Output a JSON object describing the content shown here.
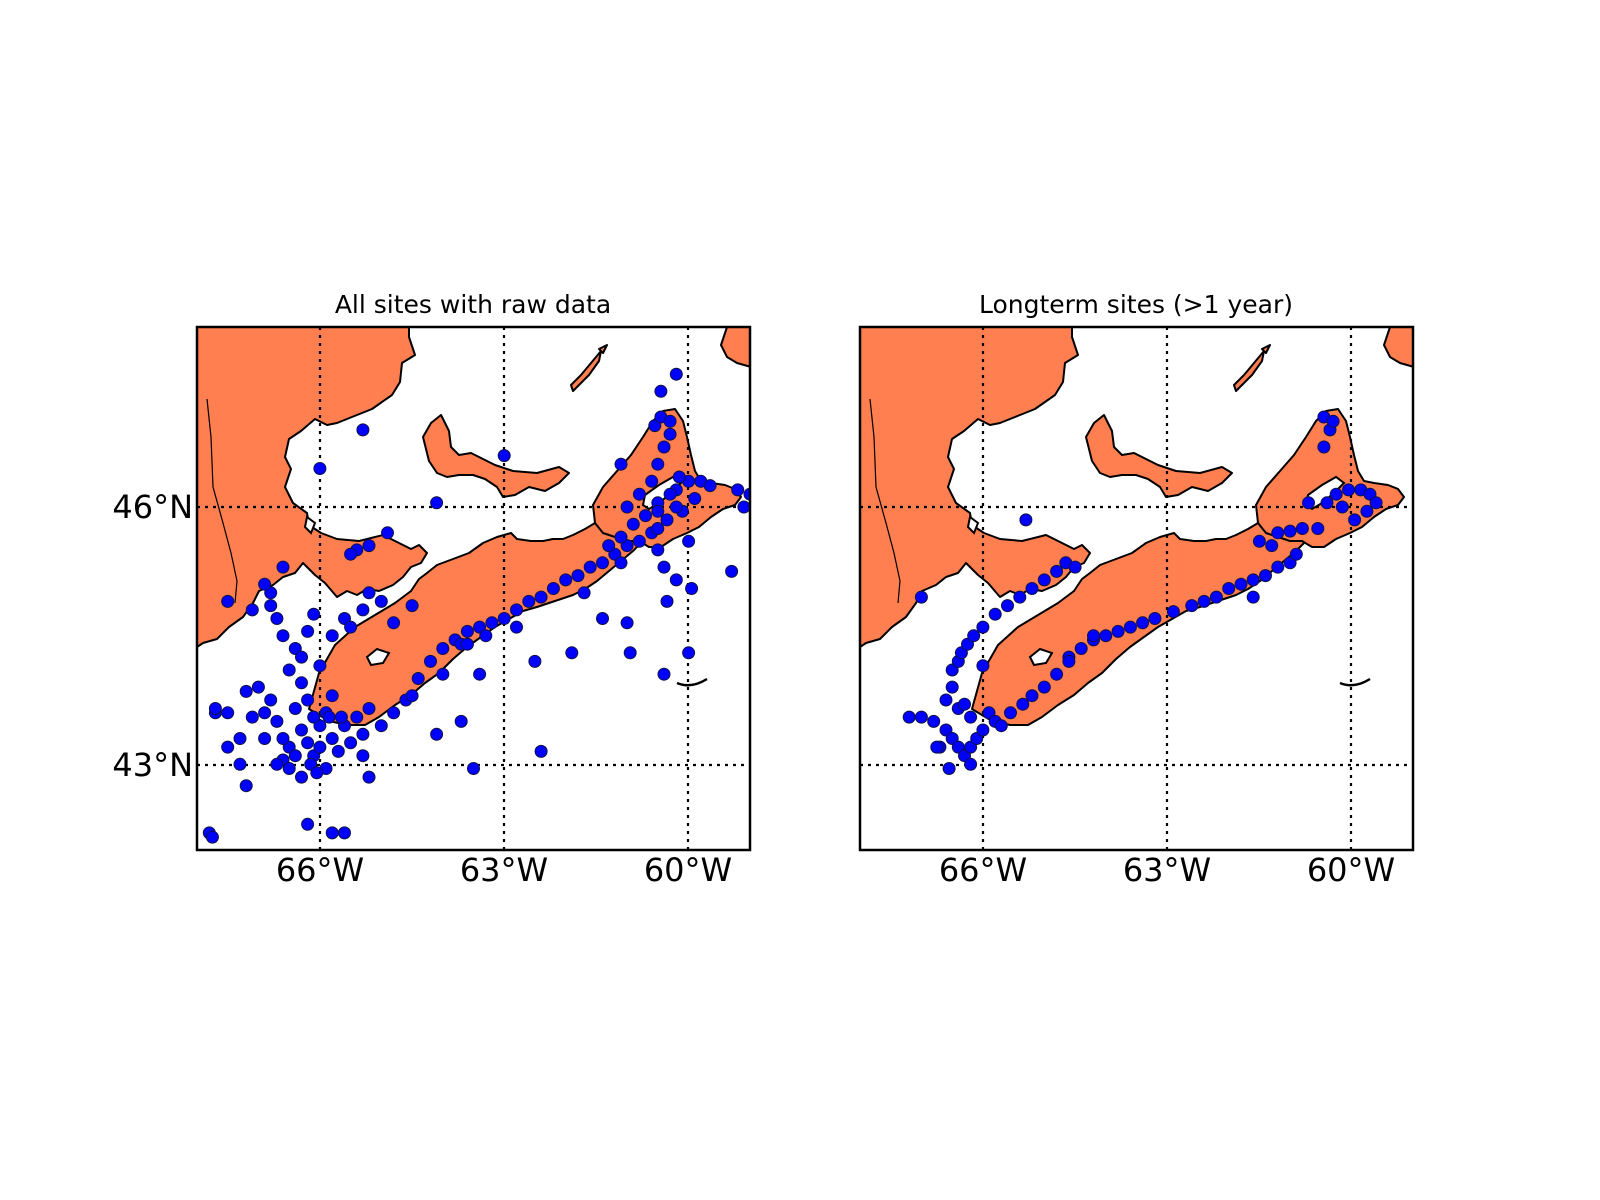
{
  "figure": {
    "panels": [
      {
        "id": "left",
        "title": "All sites with raw data"
      },
      {
        "id": "right",
        "title": "Longterm sites (>1 year)"
      }
    ],
    "y_tick_labels": [
      "46°N",
      "43°N"
    ],
    "x_tick_labels": [
      "66°W",
      "63°W",
      "60°W"
    ],
    "land_color": "#ff7f50",
    "water_color": "#ffffff",
    "marker_color": "#0000ff",
    "grid_style": "dotted"
  },
  "chart_data": [
    {
      "type": "scatter",
      "title": "All sites with raw data",
      "projection": "map (lon/lat)",
      "xlim": [
        -68.0,
        -59.0
      ],
      "ylim": [
        42.0,
        48.1
      ],
      "meridians": [
        -66,
        -63,
        -60
      ],
      "parallels": [
        43,
        46
      ],
      "xlabel": "",
      "ylabel": "",
      "grid": true,
      "series": [
        {
          "points": [
            [
              -67.1,
              43.55
            ],
            [
              -66.9,
              43.3
            ],
            [
              -66.7,
              43.5
            ],
            [
              -66.5,
              43.2
            ],
            [
              -66.3,
              43.4
            ],
            [
              -66.1,
              43.1
            ],
            [
              -65.9,
              43.6
            ],
            [
              -66.6,
              43.05
            ],
            [
              -66.8,
              43.75
            ],
            [
              -66.4,
              43.65
            ],
            [
              -66.2,
              43.75
            ],
            [
              -66.0,
              43.45
            ],
            [
              -65.8,
              43.3
            ],
            [
              -65.6,
              43.45
            ],
            [
              -65.4,
              43.55
            ],
            [
              -65.2,
              43.65
            ],
            [
              -66.7,
              43.0
            ],
            [
              -67.3,
              43.3
            ],
            [
              -67.5,
              43.2
            ],
            [
              -67.7,
              43.6
            ],
            [
              -67.2,
              42.75
            ],
            [
              -66.3,
              42.85
            ],
            [
              -66.5,
              42.95
            ],
            [
              -66.0,
              43.2
            ],
            [
              -65.9,
              42.95
            ],
            [
              -65.7,
              43.15
            ],
            [
              -67.2,
              43.85
            ],
            [
              -67.0,
              43.9
            ],
            [
              -66.9,
              43.6
            ],
            [
              -66.6,
              43.3
            ],
            [
              -66.4,
              43.1
            ],
            [
              -66.2,
              43.25
            ],
            [
              -66.1,
              43.55
            ],
            [
              -66.3,
              43.95
            ],
            [
              -66.5,
              44.1
            ],
            [
              -66.4,
              44.35
            ],
            [
              -66.6,
              44.5
            ],
            [
              -66.2,
              44.55
            ],
            [
              -66.1,
              44.75
            ],
            [
              -66.3,
              44.25
            ],
            [
              -66.0,
              44.15
            ],
            [
              -66.15,
              43.0
            ],
            [
              -66.05,
              42.9
            ],
            [
              -65.85,
              43.55
            ],
            [
              -65.8,
              43.8
            ],
            [
              -65.65,
              43.55
            ],
            [
              -65.5,
              43.25
            ],
            [
              -65.3,
              43.35
            ],
            [
              -65.0,
              43.45
            ],
            [
              -64.8,
              43.6
            ],
            [
              -64.6,
              43.75
            ],
            [
              -64.4,
              44.0
            ],
            [
              -64.2,
              44.2
            ],
            [
              -64.0,
              44.35
            ],
            [
              -63.8,
              44.45
            ],
            [
              -63.6,
              44.55
            ],
            [
              -63.4,
              44.6
            ],
            [
              -63.2,
              44.65
            ],
            [
              -63.0,
              44.7
            ],
            [
              -62.8,
              44.8
            ],
            [
              -62.6,
              44.9
            ],
            [
              -62.4,
              44.95
            ],
            [
              -62.2,
              45.05
            ],
            [
              -62.0,
              45.15
            ],
            [
              -61.8,
              45.2
            ],
            [
              -61.6,
              45.3
            ],
            [
              -61.4,
              45.35
            ],
            [
              -61.2,
              45.45
            ],
            [
              -61.0,
              45.55
            ],
            [
              -60.8,
              45.6
            ],
            [
              -60.6,
              45.7
            ],
            [
              -61.1,
              45.65
            ],
            [
              -61.3,
              45.55
            ],
            [
              -60.9,
              45.8
            ],
            [
              -61.0,
              46.0
            ],
            [
              -60.8,
              46.15
            ],
            [
              -60.6,
              46.3
            ],
            [
              -60.5,
              46.5
            ],
            [
              -60.4,
              46.7
            ],
            [
              -60.3,
              46.85
            ],
            [
              -60.55,
              46.95
            ],
            [
              -60.45,
              47.05
            ],
            [
              -60.3,
              47.0
            ],
            [
              -60.2,
              46.2
            ],
            [
              -60.0,
              46.3
            ],
            [
              -59.8,
              46.3
            ],
            [
              -59.65,
              46.25
            ],
            [
              -59.9,
              46.1
            ],
            [
              -60.1,
              45.95
            ],
            [
              -60.35,
              45.85
            ],
            [
              -60.5,
              45.75
            ],
            [
              -60.7,
              45.9
            ],
            [
              -60.5,
              46.05
            ],
            [
              -60.3,
              46.15
            ],
            [
              -60.2,
              46.0
            ],
            [
              -60.0,
              45.6
            ],
            [
              -59.2,
              46.2
            ],
            [
              -59.0,
              46.15
            ],
            [
              -59.1,
              46.0
            ],
            [
              -59.3,
              45.25
            ],
            [
              -59.95,
              45.05
            ],
            [
              -60.4,
              45.3
            ],
            [
              -60.2,
              45.15
            ],
            [
              -60.35,
              44.9
            ],
            [
              -60.5,
              45.5
            ],
            [
              -61.7,
              45.0
            ],
            [
              -61.4,
              44.7
            ],
            [
              -61.0,
              44.65
            ],
            [
              -60.95,
              44.3
            ],
            [
              -61.9,
              44.3
            ],
            [
              -62.5,
              44.2
            ],
            [
              -63.3,
              44.5
            ],
            [
              -63.7,
              44.4
            ],
            [
              -63.4,
              44.05
            ],
            [
              -63.6,
              44.4
            ],
            [
              -62.8,
              44.6
            ],
            [
              -64.0,
              44.05
            ],
            [
              -64.5,
              43.8
            ],
            [
              -63.5,
              42.95
            ],
            [
              -62.4,
              43.15
            ],
            [
              -64.1,
              43.35
            ],
            [
              -60.4,
              44.05
            ],
            [
              -60.0,
              44.3
            ],
            [
              -64.5,
              44.85
            ],
            [
              -64.8,
              44.65
            ],
            [
              -65.0,
              44.9
            ],
            [
              -65.3,
              44.8
            ],
            [
              -65.6,
              44.7
            ],
            [
              -65.8,
              44.5
            ],
            [
              -65.2,
              45.0
            ],
            [
              -65.5,
              44.6
            ],
            [
              -66.6,
              45.3
            ],
            [
              -66.8,
              45.0
            ],
            [
              -67.1,
              44.8
            ],
            [
              -66.7,
              44.7
            ],
            [
              -67.5,
              44.9
            ],
            [
              -66.9,
              45.1
            ],
            [
              -66.8,
              44.85
            ],
            [
              -67.3,
              43.0
            ],
            [
              -67.5,
              43.6
            ],
            [
              -67.7,
              43.65
            ],
            [
              -67.8,
              42.2
            ],
            [
              -67.75,
              42.15
            ],
            [
              -66.2,
              42.3
            ],
            [
              -65.8,
              42.2
            ],
            [
              -65.6,
              42.2
            ],
            [
              -65.3,
              43.1
            ],
            [
              -65.2,
              42.85
            ],
            [
              -63.7,
              43.5
            ],
            [
              -66.0,
              46.45
            ],
            [
              -65.4,
              45.5
            ],
            [
              -65.2,
              45.55
            ],
            [
              -64.9,
              45.7
            ],
            [
              -65.5,
              45.45
            ],
            [
              -65.3,
              46.9
            ],
            [
              -63.0,
              46.6
            ],
            [
              -61.1,
              46.5
            ],
            [
              -64.1,
              46.05
            ],
            [
              -61.1,
              45.35
            ],
            [
              -60.45,
              47.35
            ],
            [
              -60.2,
              47.55
            ],
            [
              -60.5,
              45.95
            ],
            [
              -60.15,
              46.35
            ]
          ]
        }
      ]
    },
    {
      "type": "scatter",
      "title": "Longterm sites (>1 year)",
      "projection": "map (lon/lat)",
      "xlim": [
        -68.0,
        -59.0
      ],
      "ylim": [
        42.0,
        48.1
      ],
      "meridians": [
        -66,
        -63,
        -60
      ],
      "parallels": [
        43,
        46
      ],
      "xlabel": "",
      "ylabel": "",
      "grid": true,
      "series": [
        {
          "points": [
            [
              -67.0,
              43.55
            ],
            [
              -66.8,
              43.5
            ],
            [
              -66.6,
              43.4
            ],
            [
              -66.5,
              43.3
            ],
            [
              -66.4,
              43.2
            ],
            [
              -66.3,
              43.1
            ],
            [
              -66.2,
              43.2
            ],
            [
              -66.1,
              43.3
            ],
            [
              -66.0,
              43.4
            ],
            [
              -66.2,
              43.55
            ],
            [
              -66.4,
              43.65
            ],
            [
              -66.6,
              43.75
            ],
            [
              -66.3,
              43.7
            ],
            [
              -66.5,
              43.9
            ],
            [
              -66.5,
              44.1
            ],
            [
              -66.4,
              44.2
            ],
            [
              -66.35,
              44.3
            ],
            [
              -66.25,
              44.4
            ],
            [
              -66.15,
              44.5
            ],
            [
              -66.0,
              44.6
            ],
            [
              -65.9,
              43.6
            ],
            [
              -65.8,
              43.5
            ],
            [
              -65.7,
              43.45
            ],
            [
              -66.55,
              42.95
            ],
            [
              -66.2,
              43.0
            ],
            [
              -66.7,
              43.2
            ],
            [
              -65.8,
              44.75
            ],
            [
              -65.6,
              44.85
            ],
            [
              -65.4,
              44.95
            ],
            [
              -65.2,
              45.05
            ],
            [
              -65.0,
              45.15
            ],
            [
              -64.8,
              45.25
            ],
            [
              -64.65,
              45.35
            ],
            [
              -64.5,
              45.3
            ],
            [
              -65.55,
              43.6
            ],
            [
              -65.35,
              43.7
            ],
            [
              -65.2,
              43.8
            ],
            [
              -65.0,
              43.9
            ],
            [
              -64.8,
              44.05
            ],
            [
              -64.6,
              44.25
            ],
            [
              -64.4,
              44.35
            ],
            [
              -64.2,
              44.45
            ],
            [
              -64.0,
              44.5
            ],
            [
              -63.8,
              44.55
            ],
            [
              -63.6,
              44.6
            ],
            [
              -63.4,
              44.65
            ],
            [
              -63.2,
              44.7
            ],
            [
              -62.9,
              44.78
            ],
            [
              -62.6,
              44.85
            ],
            [
              -62.4,
              44.9
            ],
            [
              -62.2,
              44.95
            ],
            [
              -62.0,
              45.05
            ],
            [
              -61.8,
              45.1
            ],
            [
              -61.6,
              45.15
            ],
            [
              -61.4,
              45.2
            ],
            [
              -61.2,
              45.3
            ],
            [
              -61.0,
              45.35
            ],
            [
              -60.9,
              45.45
            ],
            [
              -61.3,
              45.55
            ],
            [
              -61.5,
              45.6
            ],
            [
              -61.2,
              45.7
            ],
            [
              -61.0,
              45.72
            ],
            [
              -60.8,
              45.75
            ],
            [
              -60.55,
              45.75
            ],
            [
              -60.7,
              46.05
            ],
            [
              -60.4,
              46.05
            ],
            [
              -60.25,
              46.15
            ],
            [
              -60.05,
              46.2
            ],
            [
              -59.85,
              46.2
            ],
            [
              -59.7,
              46.15
            ],
            [
              -59.6,
              46.05
            ],
            [
              -59.75,
              45.95
            ],
            [
              -59.95,
              45.85
            ],
            [
              -60.15,
              46.0
            ],
            [
              -60.45,
              46.7
            ],
            [
              -60.35,
              46.9
            ],
            [
              -60.45,
              47.05
            ],
            [
              -60.3,
              47.0
            ],
            [
              -67.0,
              44.95
            ],
            [
              -65.3,
              45.85
            ],
            [
              -67.2,
              43.55
            ],
            [
              -66.75,
              43.2
            ],
            [
              -66.0,
              44.15
            ],
            [
              -64.6,
              44.2
            ],
            [
              -64.2,
              44.5
            ],
            [
              -61.6,
              44.95
            ]
          ]
        }
      ]
    }
  ]
}
